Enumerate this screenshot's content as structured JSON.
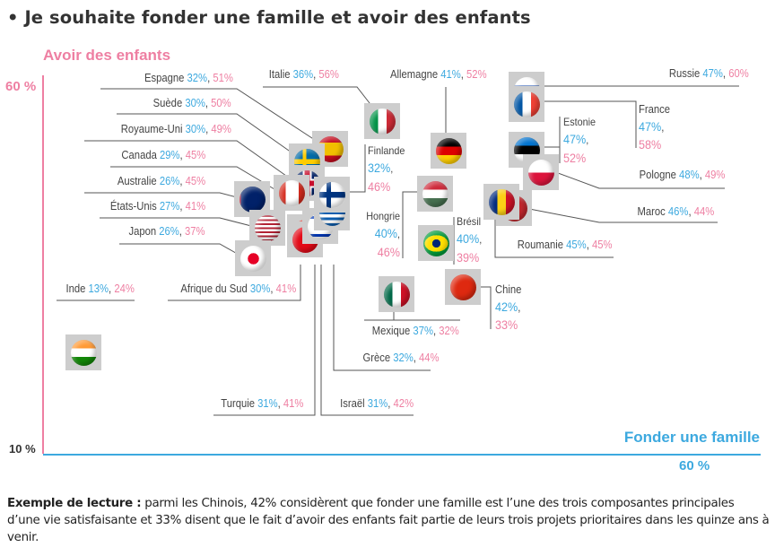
{
  "header": {
    "title": "• Je souhaite fonder une famille et avoir des enfants"
  },
  "chart_data": {
    "type": "scatter",
    "title": "Je souhaite fonder une famille et avoir des enfants",
    "xlabel": "Fonder une famille",
    "ylabel": "Avoir des enfants",
    "x_tick_labels": [
      "60 %"
    ],
    "y_tick_labels": [
      "60 %",
      "10 %"
    ],
    "xlim": [
      10,
      60
    ],
    "ylim": [
      10,
      60
    ],
    "colors": {
      "x_series": "#3da9df",
      "y_series": "#ee7fa2"
    },
    "points": [
      {
        "country": "Espagne",
        "x_label": "32%",
        "y_label": "51%",
        "x": 32,
        "y": 51
      },
      {
        "country": "Suède",
        "x_label": "30%",
        "y_label": "50%",
        "x": 30,
        "y": 50
      },
      {
        "country": "Royaume-Uni",
        "x_label": "30%",
        "y_label": "49%",
        "x": 30,
        "y": 49
      },
      {
        "country": "Canada",
        "x_label": "29%",
        "y_label": "45%",
        "x": 29,
        "y": 45
      },
      {
        "country": "Australie",
        "x_label": "26%",
        "y_label": "45%",
        "x": 26,
        "y": 45
      },
      {
        "country": "États-Unis",
        "x_label": "27%",
        "y_label": "41%",
        "x": 27,
        "y": 41
      },
      {
        "country": "Japon",
        "x_label": "26%",
        "y_label": "37%",
        "x": 26,
        "y": 37
      },
      {
        "country": "Inde",
        "x_label": "13%",
        "y_label": "24%",
        "x": 13,
        "y": 24
      },
      {
        "country": "Afrique du Sud",
        "x_label": "30%",
        "y_label": "41%",
        "x": 30,
        "y": 41
      },
      {
        "country": "Turquie",
        "x_label": "31%",
        "y_label": "41%",
        "x": 31,
        "y": 41
      },
      {
        "country": "Israël",
        "x_label": "31%",
        "y_label": "42%",
        "x": 31,
        "y": 42
      },
      {
        "country": "Grèce",
        "x_label": "32%",
        "y_label": "44%",
        "x": 32,
        "y": 44
      },
      {
        "country": "Italie",
        "x_label": "36%",
        "y_label": "56%",
        "x": 36,
        "y": 56
      },
      {
        "country": "Finlande",
        "x_label": "32%",
        "y_label": "46%",
        "x": 32,
        "y": 46
      },
      {
        "country": "Allemagne",
        "x_label": "41%",
        "y_label": "52%",
        "x": 41,
        "y": 52
      },
      {
        "country": "Hongrie",
        "x_label": "40%",
        "y_label": "46%",
        "x": 40,
        "y": 46
      },
      {
        "country": "Brésil",
        "x_label": "40%",
        "y_label": "39%",
        "x": 40,
        "y": 39
      },
      {
        "country": "Mexique",
        "x_label": "37%",
        "y_label": "32%",
        "x": 37,
        "y": 32
      },
      {
        "country": "Chine",
        "x_label": "42%",
        "y_label": "33%",
        "x": 42,
        "y": 33
      },
      {
        "country": "Russie",
        "x_label": "47%",
        "y_label": "60%",
        "x": 47,
        "y": 60
      },
      {
        "country": "France",
        "x_label": "47%",
        "y_label": "58%",
        "x": 47,
        "y": 58
      },
      {
        "country": "Estonie",
        "x_label": "47%",
        "y_label": "52%",
        "x": 47,
        "y": 52
      },
      {
        "country": "Pologne",
        "x_label": "48%",
        "y_label": "49%",
        "x": 48,
        "y": 49
      },
      {
        "country": "Maroc",
        "x_label": "46%",
        "y_label": "44%",
        "x": 46,
        "y": 44
      },
      {
        "country": "Roumanie",
        "x_label": "45%",
        "y_label": "45%",
        "x": 45,
        "y": 45
      }
    ]
  },
  "note": {
    "lead": "Exemple de lecture :",
    "text": " parmi les Chinois, 42% considèrent que fonder une famille est l’une des trois composantes principales d’une vie satisfaisante et 33% disent que le fait d’avoir des enfants fait partie de leurs trois projets prioritaires dans les quinze ans à venir."
  }
}
